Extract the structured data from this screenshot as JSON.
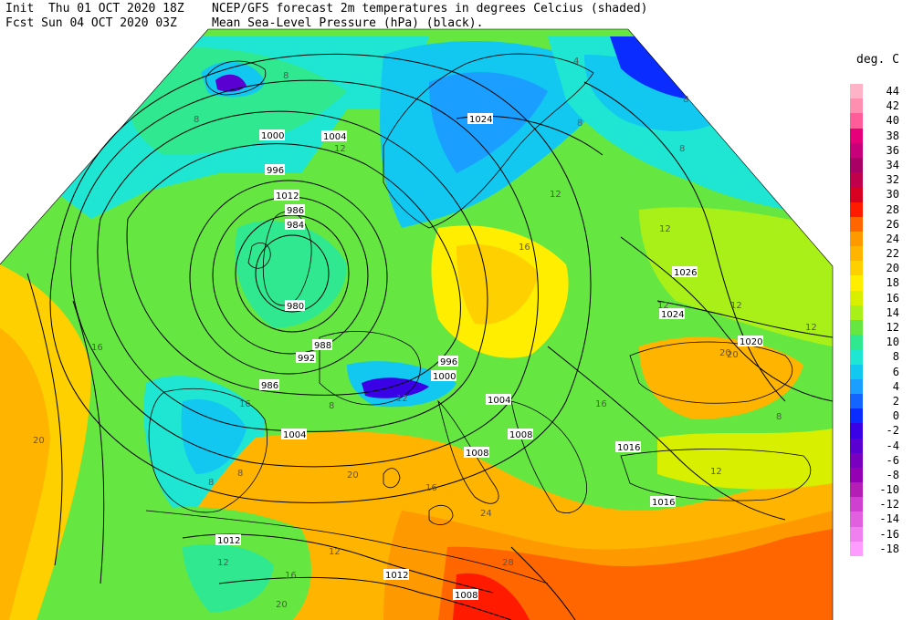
{
  "header": {
    "init_line": "Init  Thu 01 OCT 2020 18Z",
    "fcst_line": "Fcst Sun 04 OCT 2020 03Z",
    "title_line1": "NCEP/GFS forecast 2m temperatures in degrees Celcius (shaded)",
    "title_line2": "Mean Sea-Level Pressure (hPa) (black)."
  },
  "legend": {
    "title": "deg. C",
    "entries": [
      {
        "value": "44",
        "color": "#ffb3c6"
      },
      {
        "value": "42",
        "color": "#ff8fb0"
      },
      {
        "value": "40",
        "color": "#ff5c9a"
      },
      {
        "value": "38",
        "color": "#e6007a"
      },
      {
        "value": "36",
        "color": "#c8007a"
      },
      {
        "value": "34",
        "color": "#a80064"
      },
      {
        "value": "32",
        "color": "#c0004a"
      },
      {
        "value": "30",
        "color": "#d80020"
      },
      {
        "value": "28",
        "color": "#ff1a00"
      },
      {
        "value": "26",
        "color": "#ff6600"
      },
      {
        "value": "24",
        "color": "#ff9900"
      },
      {
        "value": "22",
        "color": "#ffb400"
      },
      {
        "value": "20",
        "color": "#ffd000"
      },
      {
        "value": "18",
        "color": "#ffee00"
      },
      {
        "value": "16",
        "color": "#d8f000"
      },
      {
        "value": "14",
        "color": "#a8f018"
      },
      {
        "value": "12",
        "color": "#66e640"
      },
      {
        "value": "10",
        "color": "#30e890"
      },
      {
        "value": "8",
        "color": "#1ee6d2"
      },
      {
        "value": "6",
        "color": "#12c8f0"
      },
      {
        "value": "4",
        "color": "#1a9eff"
      },
      {
        "value": "2",
        "color": "#1464ff"
      },
      {
        "value": "0",
        "color": "#0a2cff"
      },
      {
        "value": "-2",
        "color": "#3a00e6"
      },
      {
        "value": "-4",
        "color": "#5a00d2"
      },
      {
        "value": "-6",
        "color": "#7a00c0"
      },
      {
        "value": "-8",
        "color": "#9400b4"
      },
      {
        "value": "-10",
        "color": "#b41eb4"
      },
      {
        "value": "-12",
        "color": "#d040d0"
      },
      {
        "value": "-14",
        "color": "#e060e0"
      },
      {
        "value": "-16",
        "color": "#f080f0"
      },
      {
        "value": "-18",
        "color": "#ff9cff"
      }
    ]
  },
  "isobar_labels": [
    "1024",
    "1000",
    "1004",
    "996",
    "992",
    "988",
    "984",
    "980",
    "986",
    "1026",
    "1020",
    "1016",
    "1008",
    "1012",
    "1000",
    "996",
    "1004",
    "1004",
    "1012",
    "1016",
    "1008",
    "1012",
    "986",
    "1008",
    "1024"
  ],
  "temperature_labels": [
    "8",
    "8",
    "8",
    "8",
    "12",
    "12",
    "12",
    "12",
    "16",
    "16",
    "20",
    "20",
    "20",
    "24",
    "28",
    "8",
    "12",
    "8",
    "8",
    "4",
    "8",
    "12",
    "16",
    "12",
    "12",
    "16",
    "8",
    "16",
    "20",
    "12",
    "12",
    "20",
    "16"
  ]
}
